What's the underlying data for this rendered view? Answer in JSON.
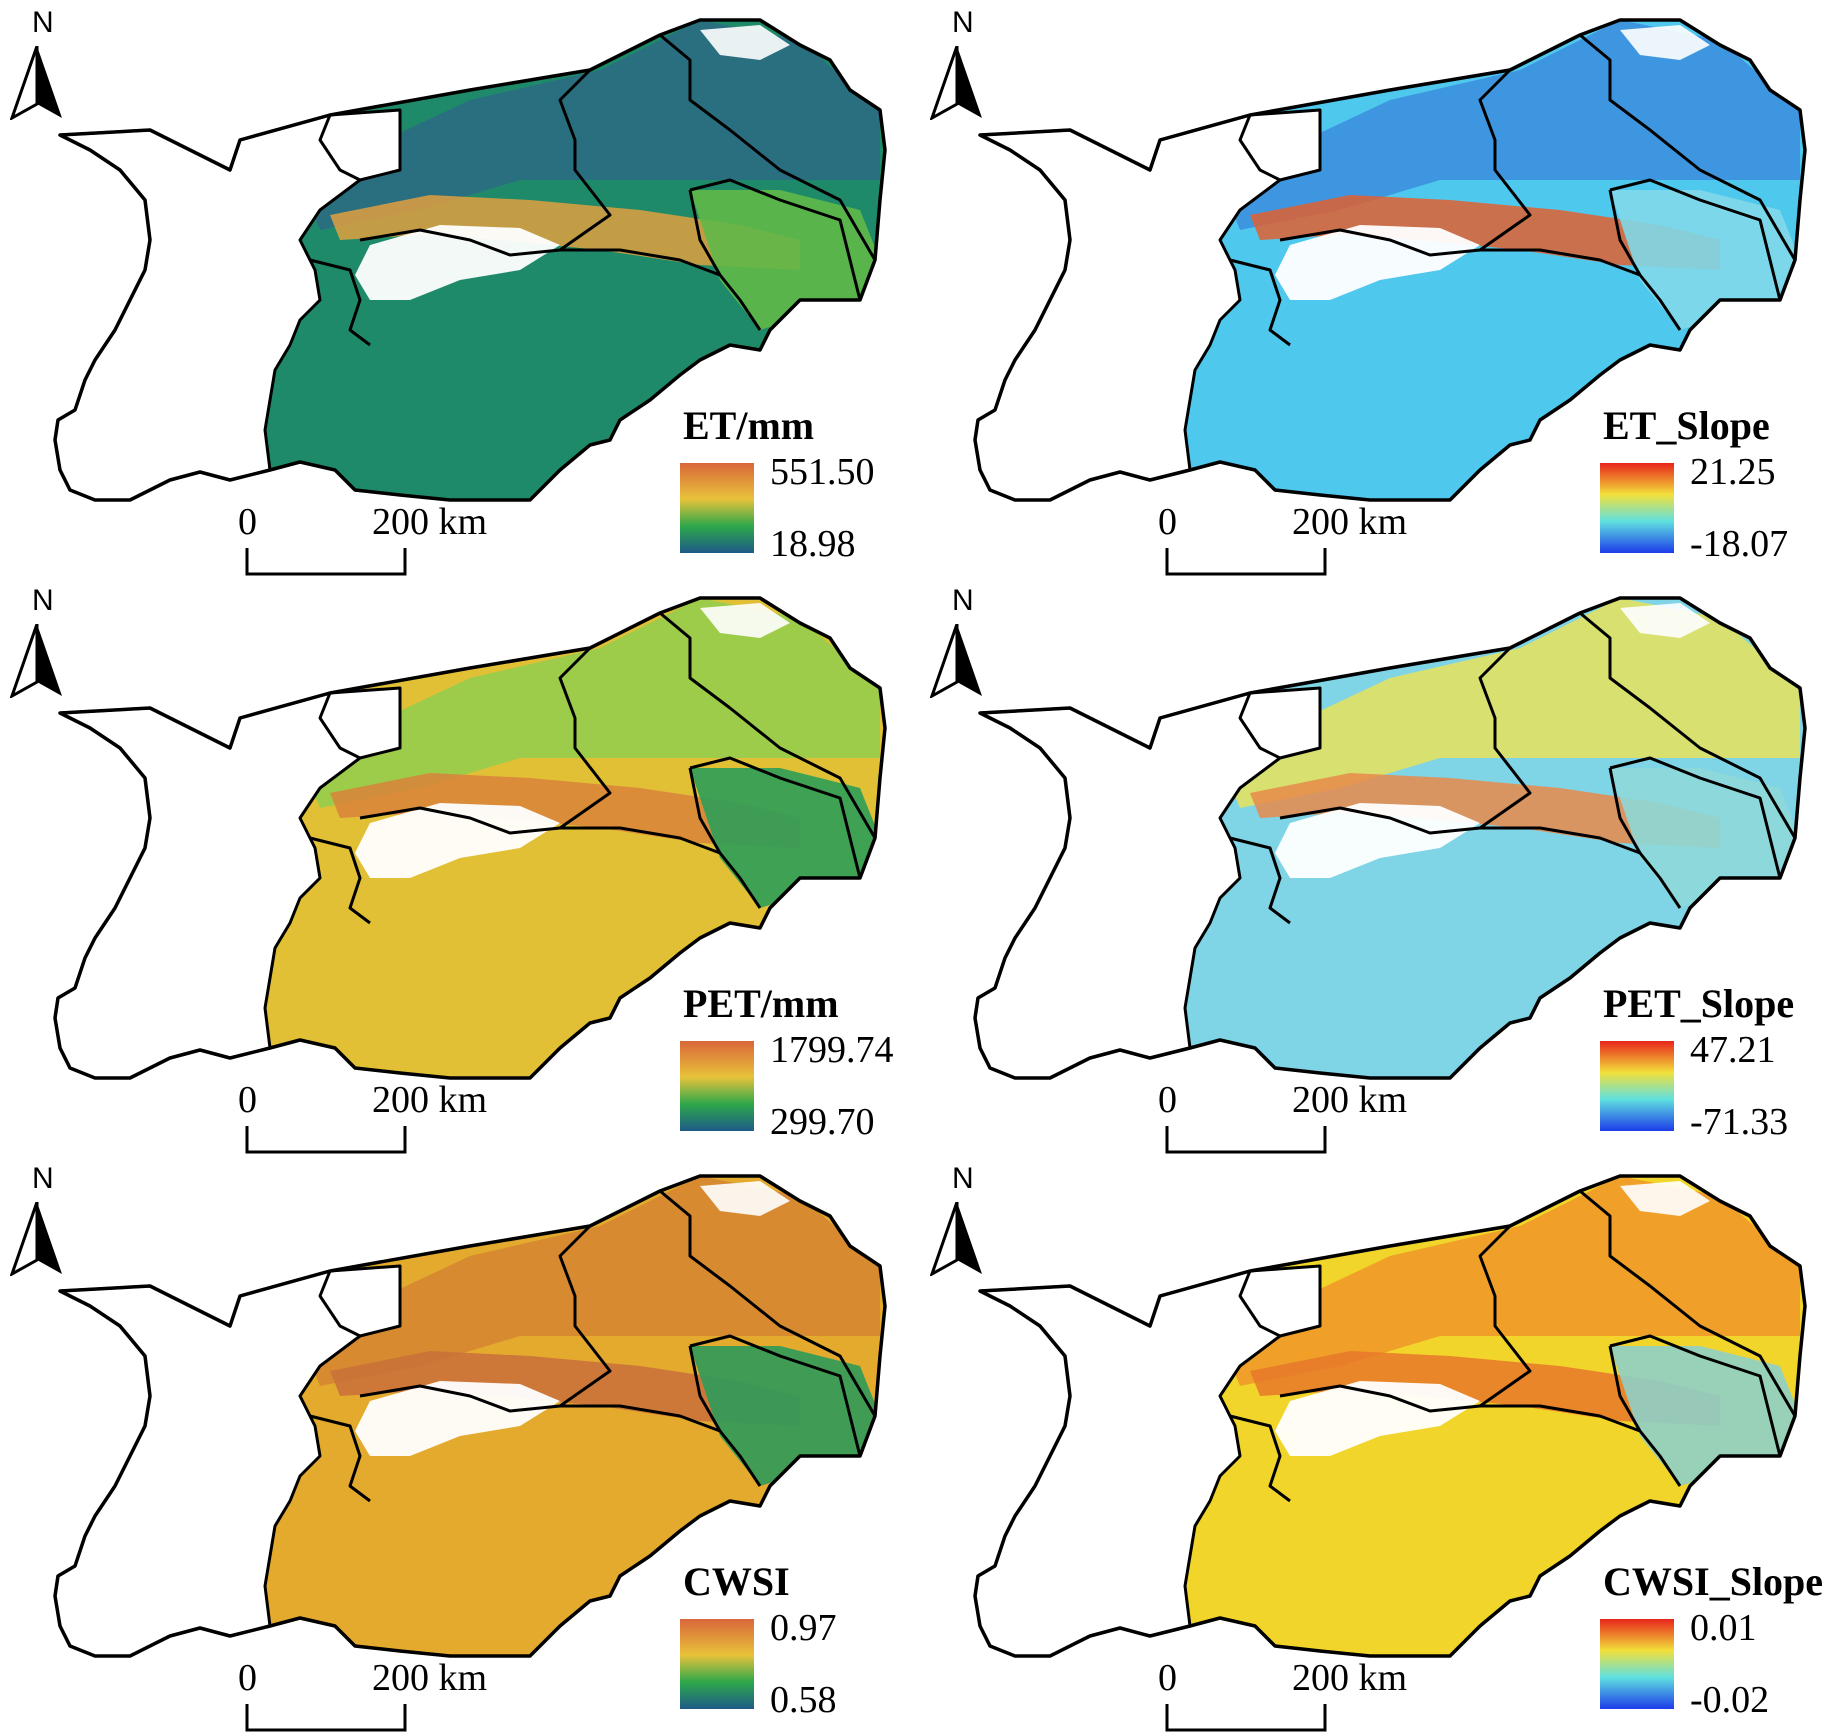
{
  "panels": [
    {
      "id": "et",
      "title": "ET/mm",
      "max": "551.50",
      "min": "18.98",
      "ramp": "ramp-a",
      "fill": {
        "base": "#1f8a6a",
        "north": "#2a6f80",
        "hot": "#e0a040",
        "east": "#5fb848"
      },
      "scale": {
        "zero": "0",
        "dist": "200 km"
      },
      "north": "N"
    },
    {
      "id": "et-slope",
      "title": "ET_Slope",
      "max": "21.25",
      "min": "-18.07",
      "ramp": "ramp-b",
      "fill": {
        "base": "#4fc8ee",
        "north": "#3f96e0",
        "hot": "#e06030",
        "east": "#7fd8e8"
      },
      "scale": {
        "zero": "0",
        "dist": "200 km"
      },
      "north": "N"
    },
    {
      "id": "pet",
      "title": "PET/mm",
      "max": "1799.74",
      "min": "299.70",
      "ramp": "ramp-a",
      "fill": {
        "base": "#e2c035",
        "north": "#9ccc4a",
        "hot": "#d9823a",
        "east": "#2e9d58"
      },
      "scale": {
        "zero": "0",
        "dist": "200 km"
      },
      "north": "N"
    },
    {
      "id": "pet-slope",
      "title": "PET_Slope",
      "max": "47.21",
      "min": "-71.33",
      "ramp": "ramp-b",
      "fill": {
        "base": "#7fd4e6",
        "north": "#d8e070",
        "hot": "#e88a4a",
        "east": "#8fd8d8"
      },
      "scale": {
        "zero": "0",
        "dist": "200 km"
      },
      "north": "N"
    },
    {
      "id": "cwsi",
      "title": "CWSI",
      "max": "0.97",
      "min": "0.58",
      "ramp": "ramp-a",
      "fill": {
        "base": "#e3aa2e",
        "north": "#d78a30",
        "hot": "#c9703a",
        "east": "#2e9a5a"
      },
      "scale": {
        "zero": "0",
        "dist": "200 km"
      },
      "north": "N"
    },
    {
      "id": "cwsi-slope",
      "title": "CWSI_Slope",
      "max": "0.01",
      "min": "-0.02",
      "ramp": "ramp-b",
      "fill": {
        "base": "#f2d52a",
        "north": "#f0a028",
        "hot": "#e8782a",
        "east": "#8fd0c8"
      },
      "scale": {
        "zero": "0",
        "dist": "200 km"
      },
      "north": "N"
    }
  ],
  "colors": {
    "ramp_a": [
      "#d9673a",
      "#e8c23a",
      "#2ea84a",
      "#1e5a88"
    ],
    "ramp_b": [
      "#e8241c",
      "#f2e03a",
      "#5fe0e0",
      "#1c3ce8"
    ],
    "boundary": "#000000",
    "snow": "#ffffff"
  },
  "icons": {
    "north_arrow": "north-arrow-icon",
    "scale_bar": "scale-bar-icon"
  }
}
